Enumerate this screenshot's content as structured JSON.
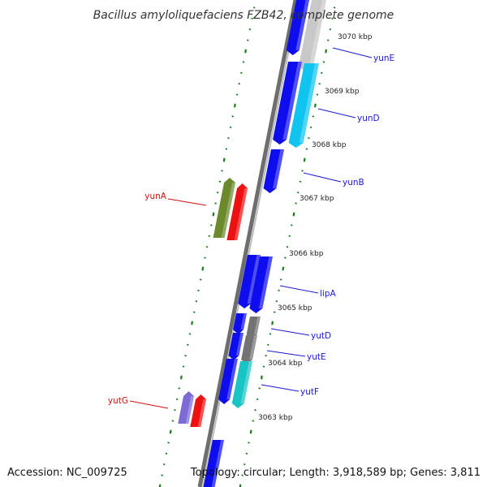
{
  "title": "Bacillus amyloliquefaciens FZB42, complete genome",
  "accession": "Accession: NC_009725",
  "topology": "Topology: circular; Length: 3,918,589 bp; Genes: 3,811",
  "colors": {
    "backbone": "#777777",
    "ticks": "#1e7a1e",
    "forward_label": "#1a1acc",
    "reverse_label": "#cc1111",
    "gene_blue": "#0d0dee",
    "gene_light_blue": "#0fc4ee",
    "gene_light_gray": "#c8c8c8",
    "gene_gray": "#737373",
    "gene_teal": "#19c4c4",
    "gene_olive": "#6a8a2c",
    "gene_red": "#ee1111",
    "gene_purple": "#7c6ad6"
  },
  "scale_labels": [
    "3070 kbp",
    "3069 kbp",
    "3068 kbp",
    "3067 kbp",
    "3066 kbp",
    "3065 kbp",
    "3064 kbp",
    "3063 kbp"
  ],
  "forward_genes": [
    "yunE",
    "yunD",
    "yunB",
    "lipA",
    "yutD",
    "yutE",
    "yutF"
  ],
  "reverse_genes": [
    "yunA",
    "yutG"
  ]
}
